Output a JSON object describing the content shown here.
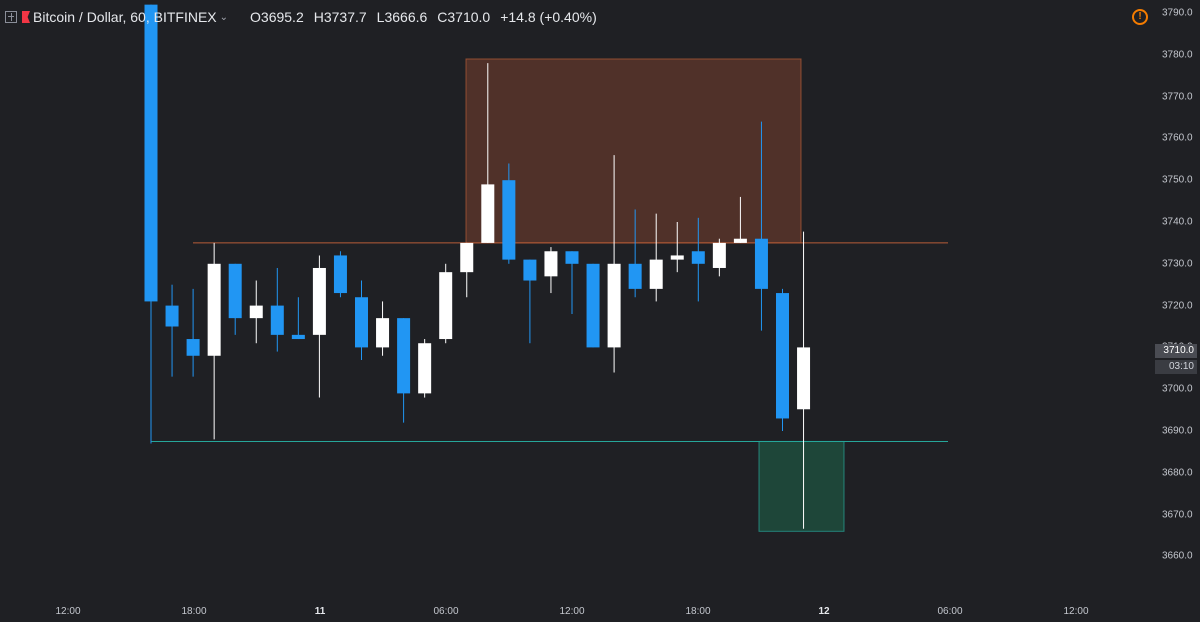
{
  "header": {
    "symbol": "Bitcoin / Dollar, 60, BITFINEX",
    "open": "O3695.2",
    "high": "H3737.7",
    "low": "L3666.6",
    "close": "C3710.0",
    "change": "+14.8 (+0.40%)",
    "warning_icon": "alert-icon"
  },
  "price_axis": {
    "ticks": [
      "3790.0",
      "3780.0",
      "3770.0",
      "3760.0",
      "3750.0",
      "3740.0",
      "3730.0",
      "3720.0",
      "3710.0",
      "3700.0",
      "3690.0",
      "3680.0",
      "3670.0",
      "3660.0"
    ],
    "last_price": "3710.0",
    "countdown": "03:10"
  },
  "time_axis": {
    "ticks": [
      {
        "label": "12:00",
        "bold": false
      },
      {
        "label": "18:00",
        "bold": false
      },
      {
        "label": "11",
        "bold": true
      },
      {
        "label": "06:00",
        "bold": false
      },
      {
        "label": "12:00",
        "bold": false
      },
      {
        "label": "18:00",
        "bold": false
      },
      {
        "label": "12",
        "bold": true
      },
      {
        "label": "06:00",
        "bold": false
      },
      {
        "label": "12:00",
        "bold": false
      }
    ]
  },
  "colors": {
    "background": "#1f2024",
    "up": "#ffffff",
    "down": "#2196f3",
    "resistance": "#b85c38",
    "support": "#26a69a",
    "short_zone": "#6b3a2c",
    "long_zone": "#1f5a45"
  },
  "chart_data": {
    "type": "candlestick",
    "timeframe": "60",
    "ylim": [
      3655,
      3792
    ],
    "candles": [
      {
        "o": 3792,
        "h": 3792,
        "l": 3687,
        "c": 3721
      },
      {
        "o": 3720,
        "h": 3725,
        "l": 3703,
        "c": 3715
      },
      {
        "o": 3712,
        "h": 3724,
        "l": 3703,
        "c": 3708
      },
      {
        "o": 3708,
        "h": 3735,
        "l": 3688,
        "c": 3730
      },
      {
        "o": 3730,
        "h": 3730,
        "l": 3713,
        "c": 3717
      },
      {
        "o": 3717,
        "h": 3726,
        "l": 3711,
        "c": 3720
      },
      {
        "o": 3720,
        "h": 3729,
        "l": 3709,
        "c": 3713
      },
      {
        "o": 3713,
        "h": 3722,
        "l": 3712,
        "c": 3712
      },
      {
        "o": 3713,
        "h": 3732,
        "l": 3698,
        "c": 3729
      },
      {
        "o": 3732,
        "h": 3733,
        "l": 3722,
        "c": 3723
      },
      {
        "o": 3722,
        "h": 3726,
        "l": 3707,
        "c": 3710
      },
      {
        "o": 3710,
        "h": 3721,
        "l": 3708,
        "c": 3717
      },
      {
        "o": 3717,
        "h": 3717,
        "l": 3692,
        "c": 3699
      },
      {
        "o": 3699,
        "h": 3712,
        "l": 3698,
        "c": 3711
      },
      {
        "o": 3712,
        "h": 3730,
        "l": 3711,
        "c": 3728
      },
      {
        "o": 3728,
        "h": 3735,
        "l": 3722,
        "c": 3735
      },
      {
        "o": 3735,
        "h": 3778,
        "l": 3735,
        "c": 3749
      },
      {
        "o": 3750,
        "h": 3754,
        "l": 3730,
        "c": 3731
      },
      {
        "o": 3731,
        "h": 3731,
        "l": 3711,
        "c": 3726
      },
      {
        "o": 3727,
        "h": 3734,
        "l": 3723,
        "c": 3733
      },
      {
        "o": 3733,
        "h": 3733,
        "l": 3718,
        "c": 3730
      },
      {
        "o": 3730,
        "h": 3730,
        "l": 3710,
        "c": 3710
      },
      {
        "o": 3710,
        "h": 3756,
        "l": 3704,
        "c": 3730
      },
      {
        "o": 3730,
        "h": 3743,
        "l": 3722,
        "c": 3724
      },
      {
        "o": 3724,
        "h": 3742,
        "l": 3721,
        "c": 3731
      },
      {
        "o": 3731,
        "h": 3740,
        "l": 3728,
        "c": 3732
      },
      {
        "o": 3733,
        "h": 3741,
        "l": 3721,
        "c": 3730
      },
      {
        "o": 3729,
        "h": 3736,
        "l": 3727,
        "c": 3735
      },
      {
        "o": 3735,
        "h": 3746,
        "l": 3735,
        "c": 3736
      },
      {
        "o": 3736,
        "h": 3764,
        "l": 3714,
        "c": 3724
      },
      {
        "o": 3723,
        "h": 3724,
        "l": 3690,
        "c": 3693
      },
      {
        "o": 3695.2,
        "h": 3737.7,
        "l": 3666.6,
        "c": 3710.0
      }
    ],
    "lines": [
      {
        "price": 3735,
        "role": "resistance"
      },
      {
        "price": 3687.5,
        "role": "support"
      }
    ],
    "zones": [
      {
        "from": 3735,
        "to": 3779,
        "role": "short"
      },
      {
        "from": 3666,
        "to": 3687.5,
        "role": "long"
      }
    ]
  }
}
